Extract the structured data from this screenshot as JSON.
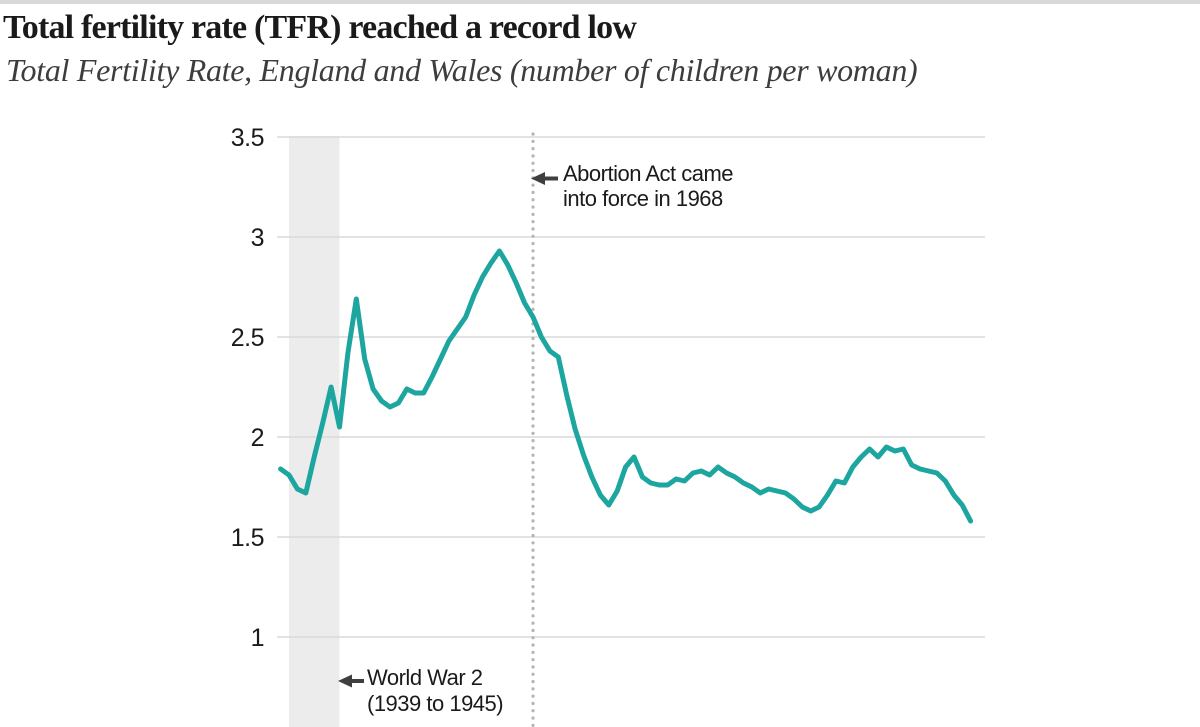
{
  "header": {
    "title": "Total fertility rate (TFR) reached a record low",
    "subtitle": "Total Fertility Rate, England and Wales (number of children per woman)"
  },
  "chart_data": {
    "type": "line",
    "title": "Total fertility rate (TFR) reached a record low",
    "subtitle": "Total Fertility Rate, England and Wales (number of children per woman)",
    "ylabel": "",
    "xlabel": "",
    "xlim": [
      1938,
      2020
    ],
    "ylim": [
      0.55,
      3.5
    ],
    "grid": "horizontal",
    "x_axis_labels_visible": false,
    "legend": "none",
    "y_ticks": [
      {
        "value": 3.5,
        "label": "3.5"
      },
      {
        "value": 3.0,
        "label": "3"
      },
      {
        "value": 2.5,
        "label": "2.5"
      },
      {
        "value": 2.0,
        "label": "2"
      },
      {
        "value": 1.5,
        "label": "1.5"
      },
      {
        "value": 1.0,
        "label": "1"
      }
    ],
    "series": [
      {
        "name": "Total Fertility Rate, England and Wales",
        "x": [
          1938,
          1939,
          1940,
          1941,
          1942,
          1943,
          1944,
          1945,
          1946,
          1947,
          1948,
          1949,
          1950,
          1951,
          1952,
          1953,
          1954,
          1955,
          1956,
          1957,
          1958,
          1959,
          1960,
          1961,
          1962,
          1963,
          1964,
          1965,
          1966,
          1967,
          1968,
          1969,
          1970,
          1971,
          1972,
          1973,
          1974,
          1975,
          1976,
          1977,
          1978,
          1979,
          1980,
          1981,
          1982,
          1983,
          1984,
          1985,
          1986,
          1987,
          1988,
          1989,
          1990,
          1991,
          1992,
          1993,
          1994,
          1995,
          1996,
          1997,
          1998,
          1999,
          2000,
          2001,
          2002,
          2003,
          2004,
          2005,
          2006,
          2007,
          2008,
          2009,
          2010,
          2011,
          2012,
          2013,
          2014,
          2015,
          2016,
          2017,
          2018,
          2019,
          2020
        ],
        "values": [
          1.84,
          1.81,
          1.74,
          1.72,
          1.9,
          2.07,
          2.25,
          2.05,
          2.42,
          2.69,
          2.39,
          2.24,
          2.18,
          2.15,
          2.17,
          2.24,
          2.22,
          2.22,
          2.3,
          2.39,
          2.48,
          2.54,
          2.6,
          2.71,
          2.8,
          2.87,
          2.93,
          2.86,
          2.77,
          2.67,
          2.6,
          2.5,
          2.43,
          2.4,
          2.21,
          2.04,
          1.91,
          1.8,
          1.71,
          1.66,
          1.73,
          1.85,
          1.9,
          1.8,
          1.77,
          1.76,
          1.76,
          1.79,
          1.78,
          1.82,
          1.83,
          1.81,
          1.85,
          1.82,
          1.8,
          1.77,
          1.75,
          1.72,
          1.74,
          1.73,
          1.72,
          1.69,
          1.65,
          1.63,
          1.65,
          1.71,
          1.78,
          1.77,
          1.85,
          1.9,
          1.94,
          1.9,
          1.95,
          1.93,
          1.94,
          1.86,
          1.84,
          1.83,
          1.82,
          1.78,
          1.71,
          1.66,
          1.58
        ]
      }
    ],
    "annotations": [
      {
        "id": "world-war-2",
        "type": "band",
        "line1": "World War 2",
        "line2": "(1939 to 1945)",
        "start_year": 1939,
        "end_year": 1945
      },
      {
        "id": "abortion-act",
        "type": "vline",
        "line1": "Abortion Act came",
        "line2": "into force in 1968",
        "year": 1968
      }
    ],
    "colors": {
      "line": "#1da59f",
      "band": "#ececec",
      "gridline": "#dadada",
      "dotted_line": "#b5b5b5",
      "text": "#1a1a1a",
      "arrow": "#3f3f3f"
    }
  }
}
